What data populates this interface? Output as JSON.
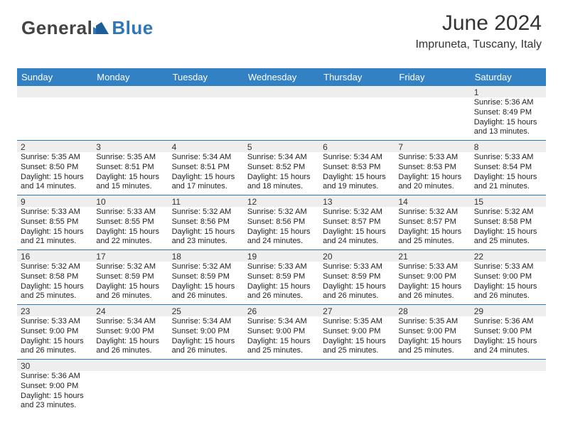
{
  "logo": {
    "general": "General",
    "blue": "Blue"
  },
  "title": "June 2024",
  "subtitle": "Impruneta, Tuscany, Italy",
  "colors": {
    "header_bg": "#3381c5",
    "header_text": "#ffffff",
    "row_divider": "#2f77b6",
    "daynum_bg": "#eeeeee",
    "logo_gray": "#444444",
    "logo_blue": "#2f77b6",
    "text": "#222222",
    "title_color": "#333333"
  },
  "day_names": [
    "Sunday",
    "Monday",
    "Tuesday",
    "Wednesday",
    "Thursday",
    "Friday",
    "Saturday"
  ],
  "weeks": [
    {
      "nums": [
        "",
        "",
        "",
        "",
        "",
        "",
        "1"
      ],
      "cells": [
        "",
        "",
        "",
        "",
        "",
        "",
        "Sunrise: 5:36 AM\nSunset: 8:49 PM\nDaylight: 15 hours\nand 13 minutes."
      ]
    },
    {
      "nums": [
        "2",
        "3",
        "4",
        "5",
        "6",
        "7",
        "8"
      ],
      "cells": [
        "Sunrise: 5:35 AM\nSunset: 8:50 PM\nDaylight: 15 hours\nand 14 minutes.",
        "Sunrise: 5:35 AM\nSunset: 8:51 PM\nDaylight: 15 hours\nand 15 minutes.",
        "Sunrise: 5:34 AM\nSunset: 8:51 PM\nDaylight: 15 hours\nand 17 minutes.",
        "Sunrise: 5:34 AM\nSunset: 8:52 PM\nDaylight: 15 hours\nand 18 minutes.",
        "Sunrise: 5:34 AM\nSunset: 8:53 PM\nDaylight: 15 hours\nand 19 minutes.",
        "Sunrise: 5:33 AM\nSunset: 8:53 PM\nDaylight: 15 hours\nand 20 minutes.",
        "Sunrise: 5:33 AM\nSunset: 8:54 PM\nDaylight: 15 hours\nand 21 minutes."
      ]
    },
    {
      "nums": [
        "9",
        "10",
        "11",
        "12",
        "13",
        "14",
        "15"
      ],
      "cells": [
        "Sunrise: 5:33 AM\nSunset: 8:55 PM\nDaylight: 15 hours\nand 21 minutes.",
        "Sunrise: 5:33 AM\nSunset: 8:55 PM\nDaylight: 15 hours\nand 22 minutes.",
        "Sunrise: 5:32 AM\nSunset: 8:56 PM\nDaylight: 15 hours\nand 23 minutes.",
        "Sunrise: 5:32 AM\nSunset: 8:56 PM\nDaylight: 15 hours\nand 24 minutes.",
        "Sunrise: 5:32 AM\nSunset: 8:57 PM\nDaylight: 15 hours\nand 24 minutes.",
        "Sunrise: 5:32 AM\nSunset: 8:57 PM\nDaylight: 15 hours\nand 25 minutes.",
        "Sunrise: 5:32 AM\nSunset: 8:58 PM\nDaylight: 15 hours\nand 25 minutes."
      ]
    },
    {
      "nums": [
        "16",
        "17",
        "18",
        "19",
        "20",
        "21",
        "22"
      ],
      "cells": [
        "Sunrise: 5:32 AM\nSunset: 8:58 PM\nDaylight: 15 hours\nand 25 minutes.",
        "Sunrise: 5:32 AM\nSunset: 8:59 PM\nDaylight: 15 hours\nand 26 minutes.",
        "Sunrise: 5:32 AM\nSunset: 8:59 PM\nDaylight: 15 hours\nand 26 minutes.",
        "Sunrise: 5:33 AM\nSunset: 8:59 PM\nDaylight: 15 hours\nand 26 minutes.",
        "Sunrise: 5:33 AM\nSunset: 8:59 PM\nDaylight: 15 hours\nand 26 minutes.",
        "Sunrise: 5:33 AM\nSunset: 9:00 PM\nDaylight: 15 hours\nand 26 minutes.",
        "Sunrise: 5:33 AM\nSunset: 9:00 PM\nDaylight: 15 hours\nand 26 minutes."
      ]
    },
    {
      "nums": [
        "23",
        "24",
        "25",
        "26",
        "27",
        "28",
        "29"
      ],
      "cells": [
        "Sunrise: 5:33 AM\nSunset: 9:00 PM\nDaylight: 15 hours\nand 26 minutes.",
        "Sunrise: 5:34 AM\nSunset: 9:00 PM\nDaylight: 15 hours\nand 26 minutes.",
        "Sunrise: 5:34 AM\nSunset: 9:00 PM\nDaylight: 15 hours\nand 26 minutes.",
        "Sunrise: 5:34 AM\nSunset: 9:00 PM\nDaylight: 15 hours\nand 25 minutes.",
        "Sunrise: 5:35 AM\nSunset: 9:00 PM\nDaylight: 15 hours\nand 25 minutes.",
        "Sunrise: 5:35 AM\nSunset: 9:00 PM\nDaylight: 15 hours\nand 25 minutes.",
        "Sunrise: 5:36 AM\nSunset: 9:00 PM\nDaylight: 15 hours\nand 24 minutes."
      ]
    },
    {
      "nums": [
        "30",
        "",
        "",
        "",
        "",
        "",
        ""
      ],
      "cells": [
        "Sunrise: 5:36 AM\nSunset: 9:00 PM\nDaylight: 15 hours\nand 23 minutes.",
        "",
        "",
        "",
        "",
        "",
        ""
      ]
    }
  ]
}
